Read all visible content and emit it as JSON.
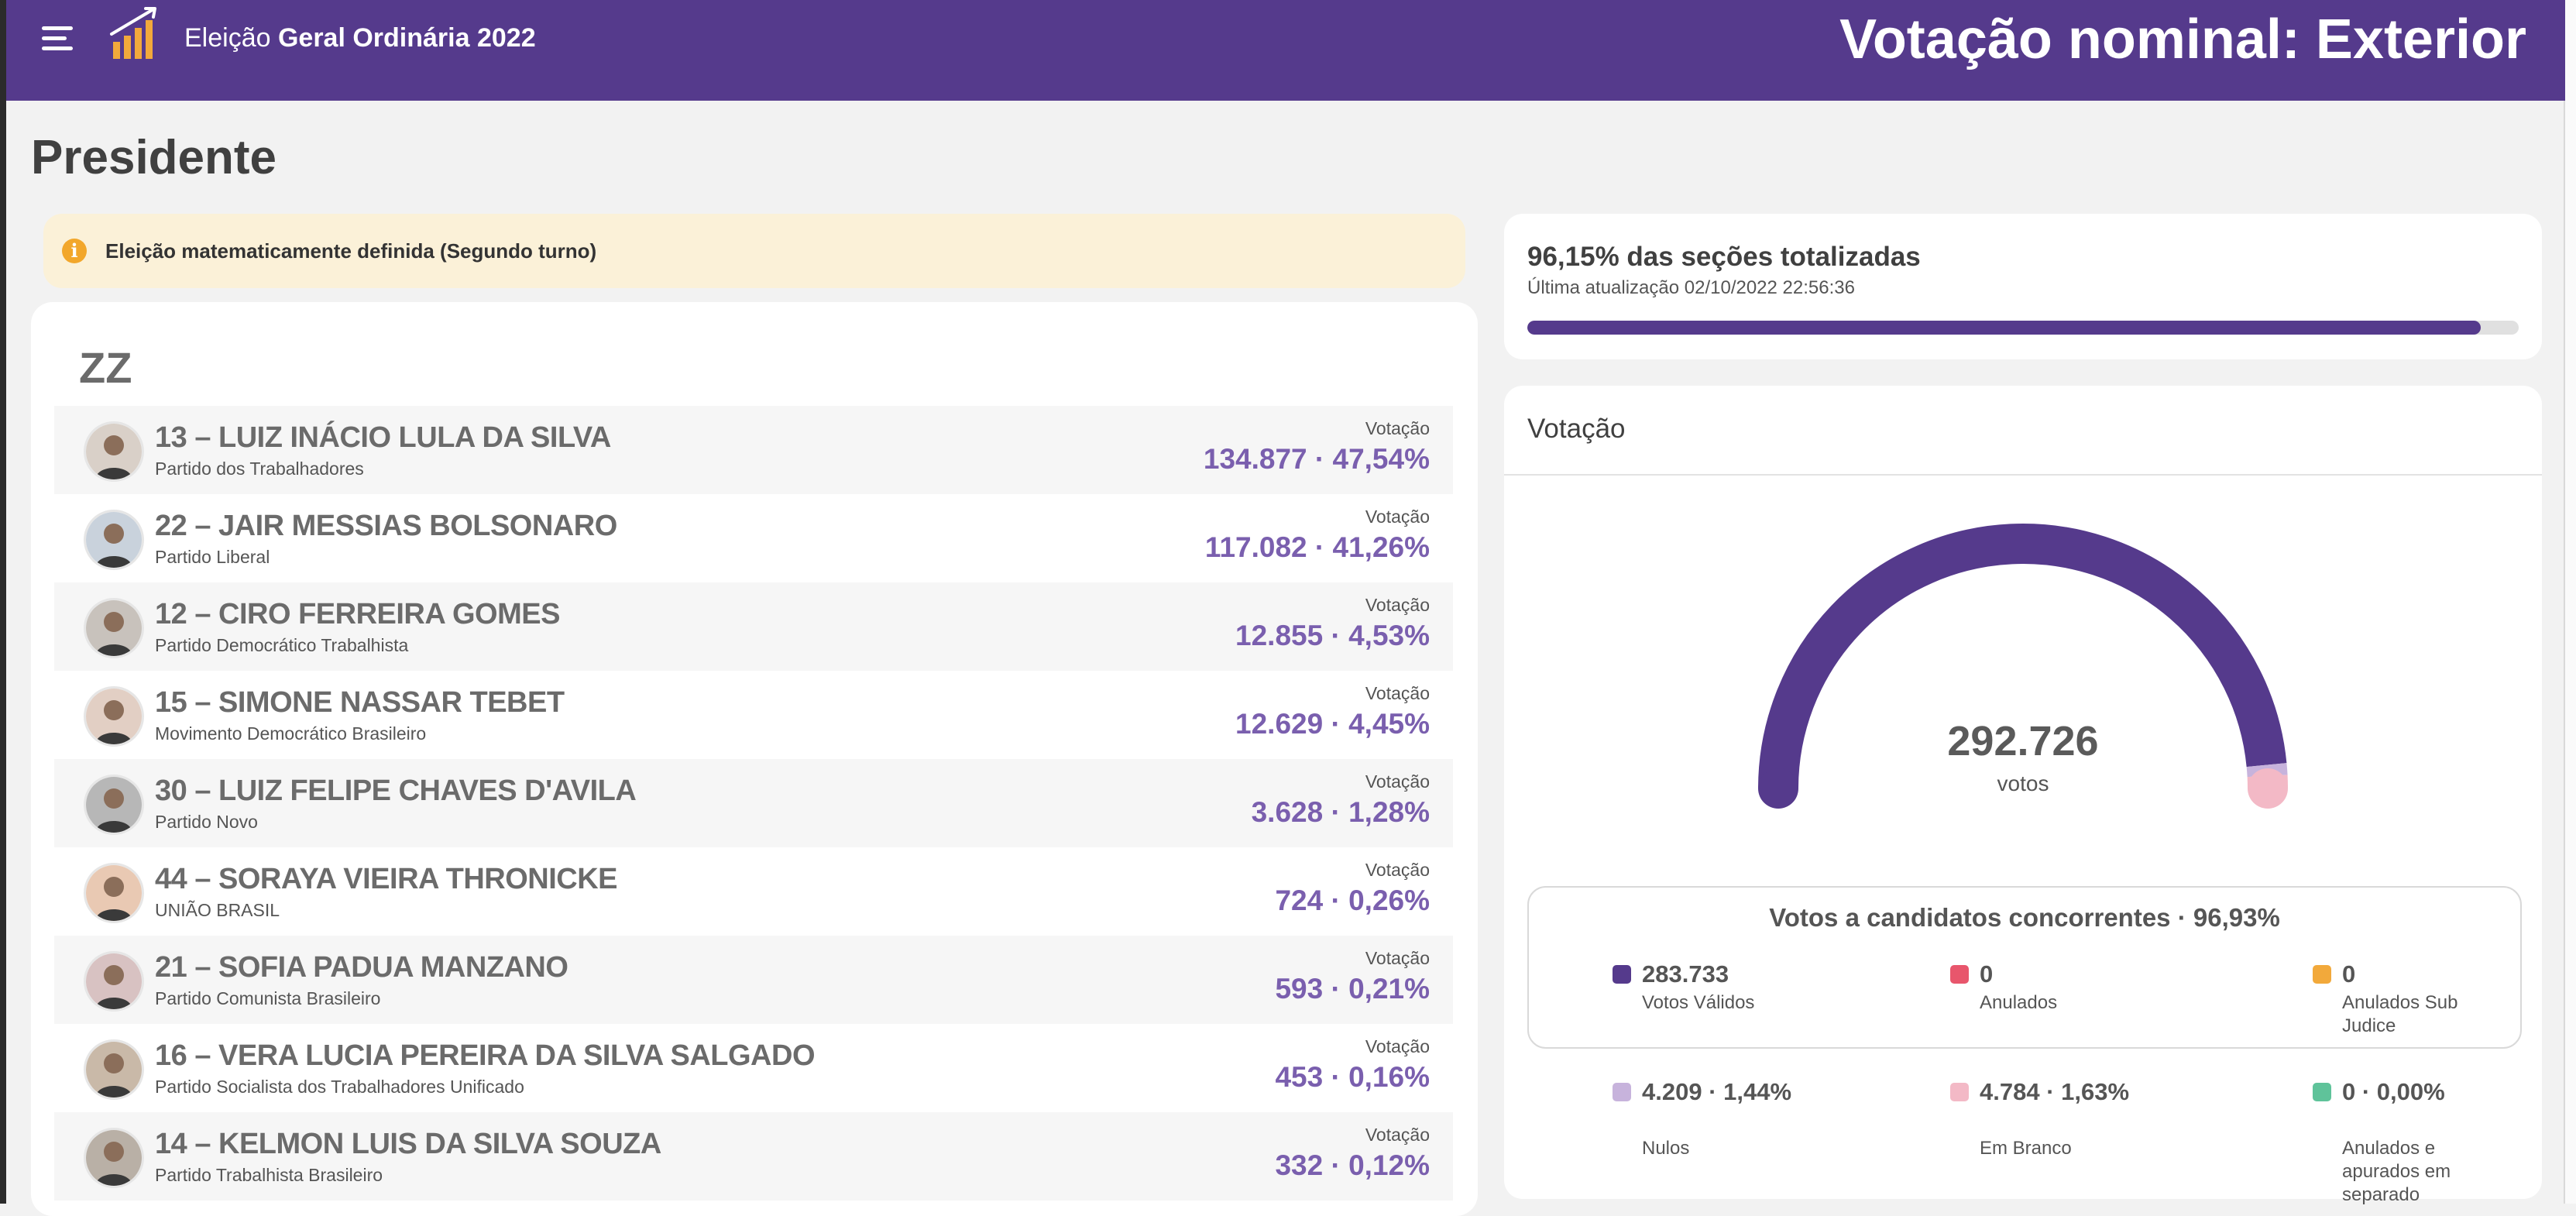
{
  "header": {
    "election_prefix": "Eleição",
    "election_name": "Geral Ordinária 2022",
    "page_title": "Votação nominal: Exterior"
  },
  "office": "Presidente",
  "alert": "Eleição matematicamente definida (Segundo turno)",
  "candidates_header": "ZZ",
  "vote_label": "Votação",
  "candidates": [
    {
      "name": "13 – LUIZ INÁCIO LULA DA SILVA",
      "party": "Partido dos Trabalhadores",
      "votes": "134.877 · 47,54%"
    },
    {
      "name": "22 – JAIR MESSIAS BOLSONARO",
      "party": "Partido Liberal",
      "votes": "117.082 · 41,26%"
    },
    {
      "name": "12 – CIRO FERREIRA GOMES",
      "party": "Partido Democrático Trabalhista",
      "votes": "12.855 · 4,53%"
    },
    {
      "name": "15 – SIMONE NASSAR TEBET",
      "party": "Movimento Democrático Brasileiro",
      "votes": "12.629 · 4,45%"
    },
    {
      "name": "30 – LUIZ FELIPE CHAVES D'AVILA",
      "party": "Partido Novo",
      "votes": "3.628 · 1,28%"
    },
    {
      "name": "44 – SORAYA VIEIRA THRONICKE",
      "party": "UNIÃO BRASIL",
      "votes": "724 · 0,26%"
    },
    {
      "name": "21 – SOFIA PADUA MANZANO",
      "party": "Partido Comunista Brasileiro",
      "votes": "593 · 0,21%"
    },
    {
      "name": "16 – VERA LUCIA PEREIRA DA SILVA SALGADO",
      "party": "Partido Socialista dos Trabalhadores Unificado",
      "votes": "453 · 0,16%"
    },
    {
      "name": "14 – KELMON LUIS DA SILVA SOUZA",
      "party": "Partido Trabalhista Brasileiro",
      "votes": "332 · 0,12%"
    }
  ],
  "progress": {
    "title": "96,15% das seções totalizadas",
    "update": "Última atualização 02/10/2022 22:56:36",
    "percent": 96.15
  },
  "votacao": {
    "title": "Votação",
    "total": "292.726",
    "unit": "votos",
    "gauge_shares": {
      "validos": 96.93,
      "nulos": 1.44,
      "brancos": 1.63
    },
    "summary_title": "Votos a candidatos concorrentes · 96,93%",
    "stats": [
      {
        "value": "283.733",
        "label": "Votos Válidos",
        "color": "#553a8c"
      },
      {
        "value": "0",
        "label": "Anulados",
        "color": "#e8566c"
      },
      {
        "value": "0",
        "label": "Anulados Sub Judice",
        "color": "#f2a93b"
      },
      {
        "value": "4.209 · 1,44%",
        "label": "Nulos",
        "color": "#c7b3dc"
      },
      {
        "value": "4.784 · 1,63%",
        "label": "Em Branco",
        "color": "#f3b9c6"
      },
      {
        "value": "0 · 0,00%",
        "label": "Anulados e apurados em separado",
        "color": "#5fc39a"
      }
    ]
  },
  "colors": {
    "brand": "#553a8c",
    "vote_accent": "#7a5fae",
    "alert_bg": "#fbf1d8"
  }
}
